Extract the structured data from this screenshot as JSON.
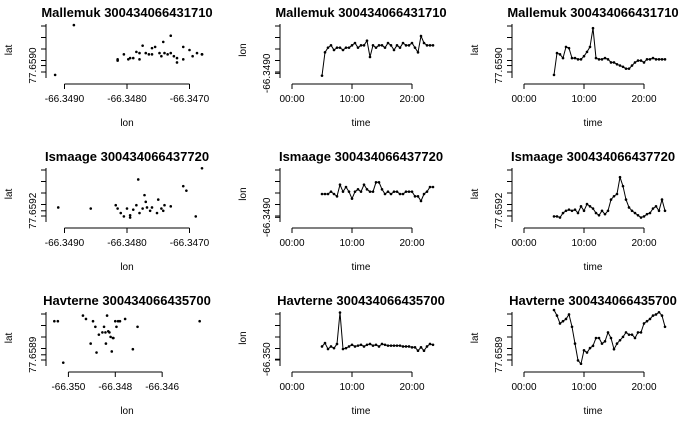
{
  "chart_data": [
    {
      "type": "scatter",
      "title": "Mallemuk 300434066431710",
      "xlabel": "lon",
      "ylabel": "lat",
      "xlim": [
        -66.3492,
        -66.3468
      ],
      "ylim": [
        77.6588,
        77.6597
      ],
      "xticks": [
        -66.349,
        -66.348,
        -66.347
      ],
      "xtick_labels": [
        "-66.3490",
        "-66.3480",
        "-66.3470"
      ],
      "yticks": [
        77.659
      ],
      "ytick_labels": [
        "77.6590"
      ],
      "x": [
        -66.34915,
        -66.34885,
        -66.34815,
        -66.34805,
        -66.34798,
        -66.3479,
        -66.34785,
        -66.3478,
        -66.34795,
        -66.34775,
        -66.3477,
        -66.34765,
        -66.3476,
        -66.34755,
        -66.34748,
        -66.34745,
        -66.3474,
        -66.34735,
        -66.3473,
        -66.3473,
        -66.34725,
        -66.3472,
        -66.3471,
        -66.347,
        -66.34695,
        -66.34688,
        -66.3468,
        -66.3466,
        -66.3476,
        -66.34742,
        -66.3478,
        -66.3472,
        -66.34815,
        -66.3471
      ],
      "y": [
        77.65885,
        77.65965,
        77.65908,
        77.65918,
        77.6591,
        77.65912,
        77.65922,
        77.6592,
        77.65912,
        77.65932,
        77.6592,
        77.65918,
        77.65918,
        77.6593,
        77.6592,
        77.65915,
        77.6592,
        77.65918,
        77.65948,
        77.6592,
        77.65915,
        77.65912,
        77.6593,
        77.65925,
        77.65915,
        77.6592,
        77.65918,
        77.65918,
        77.65928,
        77.65938,
        77.6591,
        77.65905,
        77.6591,
        77.6591
      ]
    },
    {
      "type": "line",
      "title": "Mallemuk 300434066431710",
      "xlabel": "time",
      "ylabel": "lon",
      "xlim": [
        -1,
        24
      ],
      "ylim": [
        -66.3492,
        -66.3468
      ],
      "xticks": [
        0,
        10,
        20
      ],
      "xtick_labels": [
        "00:00",
        "10:00",
        "20:00"
      ],
      "yticks": [
        -66.349
      ],
      "ytick_labels": [
        "-66.3490"
      ],
      "marker": "dot",
      "x": [
        5.0,
        5.5,
        6.0,
        6.5,
        7.0,
        7.5,
        8.0,
        8.5,
        9.0,
        9.5,
        10.0,
        10.5,
        11.0,
        11.5,
        12.0,
        12.5,
        13.0,
        13.5,
        14.0,
        14.5,
        15.0,
        15.5,
        16.0,
        16.5,
        17.0,
        17.5,
        18.0,
        18.5,
        19.0,
        19.5,
        20.0,
        20.5,
        21.0,
        21.5,
        22.0,
        22.5,
        23.0,
        23.5
      ],
      "y": [
        -66.3491,
        -66.3481,
        -66.3479,
        -66.3478,
        -66.348,
        -66.3479,
        -66.3479,
        -66.348,
        -66.3479,
        -66.3479,
        -66.3478,
        -66.3477,
        -66.3479,
        -66.3478,
        -66.3478,
        -66.3476,
        -66.3483,
        -66.3478,
        -66.3479,
        -66.3478,
        -66.3478,
        -66.3479,
        -66.3477,
        -66.3478,
        -66.348,
        -66.3478,
        -66.3479,
        -66.3477,
        -66.3478,
        -66.3478,
        -66.3477,
        -66.3479,
        -66.3481,
        -66.3474,
        -66.3477,
        -66.3478,
        -66.3478,
        -66.3478
      ]
    },
    {
      "type": "line",
      "title": "Mallemuk 300434066431710",
      "xlabel": "time",
      "ylabel": "lat",
      "xlim": [
        -1,
        24
      ],
      "ylim": [
        77.6588,
        77.6597
      ],
      "xticks": [
        0,
        10,
        20
      ],
      "xtick_labels": [
        "00:00",
        "10:00",
        "20:00"
      ],
      "yticks": [
        77.659
      ],
      "ytick_labels": [
        "77.6590"
      ],
      "marker": "dot",
      "x": [
        5.0,
        5.5,
        6.0,
        6.5,
        7.0,
        7.5,
        8.0,
        8.5,
        9.0,
        9.5,
        10.0,
        10.5,
        11.0,
        11.5,
        12.0,
        12.5,
        13.0,
        13.5,
        14.0,
        14.5,
        15.0,
        15.5,
        16.0,
        16.5,
        17.0,
        17.5,
        18.0,
        18.5,
        19.0,
        19.5,
        20.0,
        20.5,
        21.0,
        21.5,
        22.0,
        22.5,
        23.0,
        23.5
      ],
      "y": [
        77.65885,
        77.6592,
        77.65918,
        77.65912,
        77.6593,
        77.65928,
        77.65912,
        77.65912,
        77.6591,
        77.6591,
        77.65915,
        77.65922,
        77.6593,
        77.6596,
        77.65912,
        77.6591,
        77.6591,
        77.65912,
        77.6591,
        77.65905,
        77.65905,
        77.65902,
        77.659,
        77.65898,
        77.65895,
        77.65895,
        77.659,
        77.65905,
        77.65908,
        77.65908,
        77.65905,
        77.6591,
        77.6591,
        77.65912,
        77.6591,
        77.6591,
        77.6591,
        77.6591
      ]
    },
    {
      "type": "scatter",
      "title": "Ismaage 300434066437720",
      "xlabel": "lon",
      "ylabel": "lat",
      "xlim": [
        -66.3492,
        -66.3468
      ],
      "ylim": [
        77.6591,
        77.6596
      ],
      "xticks": [
        -66.349,
        -66.348,
        -66.347
      ],
      "xtick_labels": [
        "-66.3490",
        "-66.3480",
        "-66.3470"
      ],
      "yticks": [
        77.6592
      ],
      "ytick_labels": [
        "77.6592"
      ],
      "x": [
        -66.3491,
        -66.34858,
        -66.34818,
        -66.34815,
        -66.3481,
        -66.34805,
        -66.348,
        -66.34795,
        -66.3479,
        -66.34785,
        -66.3478,
        -66.34775,
        -66.3477,
        -66.34768,
        -66.34763,
        -66.3476,
        -66.3475,
        -66.34745,
        -66.3474,
        -66.3473,
        -66.3471,
        -66.34705,
        -66.3469,
        -66.3468,
        -66.34782,
        -66.34752,
        -66.34795,
        -66.34772,
        -66.34742
      ],
      "y": [
        77.65923,
        77.65922,
        77.65925,
        77.65922,
        77.65918,
        77.65915,
        77.65922,
        77.65916,
        77.65921,
        77.65925,
        77.65918,
        77.65922,
        77.65928,
        77.65923,
        77.6592,
        77.65923,
        77.6593,
        77.65922,
        77.65925,
        77.65924,
        77.65942,
        77.65938,
        77.65915,
        77.65958,
        77.65948,
        77.65918,
        77.65914,
        77.65934,
        77.6592
      ]
    },
    {
      "type": "line",
      "title": "Ismaage 300434066437720",
      "xlabel": "time",
      "ylabel": "lon",
      "xlim": [
        -1,
        24
      ],
      "ylim": [
        -66.3492,
        -66.3468
      ],
      "xticks": [
        0,
        10,
        20
      ],
      "xtick_labels": [
        "00:00",
        "10:00",
        "20:00"
      ],
      "yticks": [
        -66.349
      ],
      "ytick_labels": [
        "-66.3490"
      ],
      "marker": "dot",
      "x": [
        5.0,
        5.5,
        6.0,
        6.5,
        7.0,
        7.5,
        8.0,
        8.5,
        9.0,
        9.5,
        10.0,
        10.5,
        11.0,
        11.5,
        12.0,
        12.5,
        13.0,
        13.5,
        14.0,
        14.5,
        15.0,
        15.5,
        16.0,
        16.5,
        17.0,
        17.5,
        18.0,
        18.5,
        19.0,
        19.5,
        20.0,
        20.5,
        21.0,
        21.5,
        22.0,
        22.5,
        23.0,
        23.5
      ],
      "y": [
        -66.348,
        -66.348,
        -66.348,
        -66.3479,
        -66.348,
        -66.3481,
        -66.3476,
        -66.3479,
        -66.3477,
        -66.3479,
        -66.3482,
        -66.3479,
        -66.3478,
        -66.3479,
        -66.3476,
        -66.3478,
        -66.3479,
        -66.3479,
        -66.3475,
        -66.3475,
        -66.3478,
        -66.348,
        -66.3479,
        -66.348,
        -66.3479,
        -66.3479,
        -66.348,
        -66.348,
        -66.3479,
        -66.3479,
        -66.3479,
        -66.3481,
        -66.3481,
        -66.3483,
        -66.348,
        -66.3479,
        -66.3477,
        -66.3477
      ]
    },
    {
      "type": "line",
      "title": "Ismaage 300434066437720",
      "xlabel": "time",
      "ylabel": "lat",
      "xlim": [
        -1,
        24
      ],
      "ylim": [
        77.6591,
        77.6596
      ],
      "xticks": [
        0,
        10,
        20
      ],
      "xtick_labels": [
        "00:00",
        "10:00",
        "20:00"
      ],
      "yticks": [
        77.6592
      ],
      "ytick_labels": [
        "77.6592"
      ],
      "marker": "dot",
      "x": [
        5.0,
        5.5,
        6.0,
        6.5,
        7.0,
        7.5,
        8.0,
        8.5,
        9.0,
        9.5,
        10.0,
        10.5,
        11.0,
        11.5,
        12.0,
        12.5,
        13.0,
        13.5,
        14.0,
        14.5,
        15.0,
        15.5,
        16.0,
        16.5,
        17.0,
        17.5,
        18.0,
        18.5,
        19.0,
        19.5,
        20.0,
        20.5,
        21.0,
        21.5,
        22.0,
        22.5,
        23.0,
        23.5
      ],
      "y": [
        77.65915,
        77.65915,
        77.65914,
        77.65918,
        77.6592,
        77.65921,
        77.6592,
        77.65921,
        77.65918,
        77.65924,
        77.6592,
        77.65926,
        77.65924,
        77.65922,
        77.65918,
        77.65916,
        77.6592,
        77.65917,
        77.6592,
        77.6593,
        77.65933,
        77.65935,
        77.6595,
        77.65942,
        77.6593,
        77.65923,
        77.6592,
        77.65918,
        77.65916,
        77.65914,
        77.65915,
        77.65917,
        77.65918,
        77.65922,
        77.65924,
        77.6592,
        77.6593,
        77.6592
      ]
    },
    {
      "type": "scatter",
      "title": "Havterne 300434066435700",
      "xlabel": "lon",
      "ylabel": "lat",
      "xlim": [
        -66.3507,
        -66.3443
      ],
      "ylim": [
        77.6588,
        77.6593
      ],
      "xticks": [
        -66.35,
        -66.348,
        -66.346
      ],
      "xtick_labels": [
        "-66.350",
        "-66.348",
        "-66.346"
      ],
      "yticks": [
        77.6589
      ],
      "ytick_labels": [
        "77.6589"
      ],
      "x": [
        -66.3506,
        -66.35045,
        -66.35022,
        -66.34938,
        -66.34925,
        -66.34905,
        -66.34895,
        -66.34885,
        -66.3487,
        -66.34855,
        -66.34848,
        -66.34842,
        -66.34835,
        -66.3483,
        -66.34825,
        -66.3482,
        -66.34815,
        -66.34808,
        -66.348,
        -66.34795,
        -66.34788,
        -66.3478,
        -66.34758,
        -66.34725,
        -66.34705,
        -66.3444,
        -66.3488,
        -66.3481,
        -66.3484
      ],
      "y": [
        77.6592,
        77.6592,
        77.65883,
        77.65925,
        77.65922,
        77.659,
        77.6592,
        77.65915,
        77.65908,
        77.6591,
        77.65915,
        77.6591,
        77.65925,
        77.65911,
        77.6591,
        77.65906,
        77.65893,
        77.65905,
        77.6592,
        77.65915,
        77.6592,
        77.6592,
        77.65922,
        77.65895,
        77.65915,
        77.6592,
        77.65892,
        77.65905,
        77.659
      ]
    },
    {
      "type": "line",
      "title": "Havterne 300434066435700",
      "xlabel": "time",
      "ylabel": "lon",
      "xlim": [
        -1,
        24
      ],
      "ylim": [
        -66.3508,
        -66.3442
      ],
      "xticks": [
        0,
        10,
        20
      ],
      "xtick_labels": [
        "00:00",
        "10:00",
        "20:00"
      ],
      "yticks": [
        -66.35
      ],
      "ytick_labels": [
        "-66.350"
      ],
      "marker": "dot",
      "x": [
        5.0,
        5.5,
        6.0,
        6.5,
        7.0,
        7.5,
        8.0,
        8.5,
        9.0,
        9.5,
        10.0,
        10.5,
        11.0,
        11.5,
        12.0,
        12.5,
        13.0,
        13.5,
        14.0,
        14.5,
        15.0,
        15.5,
        16.0,
        16.5,
        17.0,
        17.5,
        18.0,
        18.5,
        19.0,
        19.5,
        20.0,
        20.5,
        21.0,
        21.5,
        22.0,
        22.5,
        23.0,
        23.5
      ],
      "y": [
        -66.3485,
        -66.3481,
        -66.3488,
        -66.3485,
        -66.3487,
        -66.3482,
        -66.3445,
        -66.3488,
        -66.3487,
        -66.3485,
        -66.3483,
        -66.3485,
        -66.3484,
        -66.3483,
        -66.3485,
        -66.3483,
        -66.3482,
        -66.3484,
        -66.3483,
        -66.3485,
        -66.3482,
        -66.3483,
        -66.3484,
        -66.3484,
        -66.3484,
        -66.3484,
        -66.3484,
        -66.3485,
        -66.3485,
        -66.3485,
        -66.3486,
        -66.3486,
        -66.349,
        -66.3486,
        -66.349,
        -66.3485,
        -66.3482,
        -66.3483
      ]
    },
    {
      "type": "line",
      "title": "Havterne 300434066435700",
      "xlabel": "time",
      "ylabel": "lat",
      "xlim": [
        -1,
        24
      ],
      "ylim": [
        77.6588,
        77.6593
      ],
      "xticks": [
        0,
        10,
        20
      ],
      "xtick_labels": [
        "00:00",
        "10:00",
        "20:00"
      ],
      "yticks": [
        77.6589
      ],
      "ytick_labels": [
        "77.6589"
      ],
      "marker": "dot",
      "x": [
        5.0,
        5.5,
        6.0,
        6.5,
        7.0,
        7.5,
        8.0,
        8.5,
        9.0,
        9.5,
        10.0,
        10.5,
        11.0,
        11.5,
        12.0,
        12.5,
        13.0,
        13.5,
        14.0,
        14.5,
        15.0,
        15.5,
        16.0,
        16.5,
        17.0,
        17.5,
        18.0,
        18.5,
        19.0,
        19.5,
        20.0,
        20.5,
        21.0,
        21.5,
        22.0,
        22.5,
        23.0,
        23.5
      ],
      "y": [
        77.6593,
        77.65925,
        77.65918,
        77.6592,
        77.65922,
        77.65926,
        77.65915,
        77.659,
        77.65885,
        77.65882,
        77.65894,
        77.65892,
        77.65896,
        77.65898,
        77.65905,
        77.65905,
        77.659,
        77.65902,
        77.6591,
        77.65905,
        77.65895,
        77.659,
        77.65903,
        77.65906,
        77.6591,
        77.65908,
        77.65908,
        77.65905,
        77.6591,
        77.6591,
        77.65918,
        77.6592,
        77.65922,
        77.65925,
        77.65926,
        77.65928,
        77.65925,
        77.65915
      ]
    }
  ]
}
